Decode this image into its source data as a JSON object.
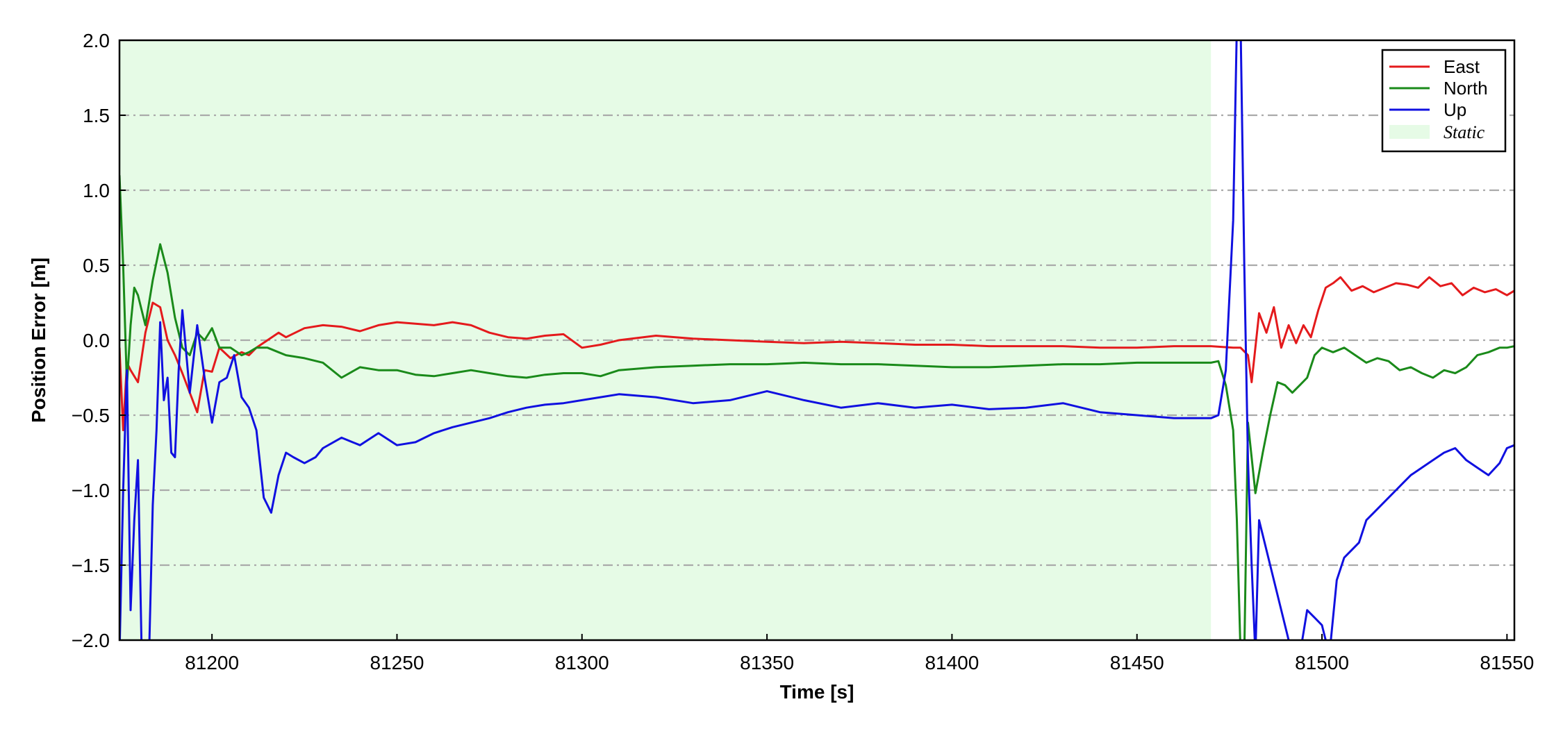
{
  "chart_data": {
    "type": "line",
    "xlabel": "Time [s]",
    "ylabel": "Position Error [m]",
    "xlim": [
      81175,
      81552
    ],
    "ylim": [
      -2.0,
      2.0
    ],
    "xticks": [
      81200,
      81250,
      81300,
      81350,
      81400,
      81450,
      81500,
      81550
    ],
    "yticks": [
      -2.0,
      -1.5,
      -1.0,
      -0.5,
      0.0,
      0.5,
      1.0,
      1.5,
      2.0
    ],
    "ytick_labels": [
      "−2.0",
      "−1.5",
      "−1.0",
      "−0.5",
      "0.0",
      "0.5",
      "1.0",
      "1.5",
      "2.0"
    ],
    "grid": "horizontal dash-dot",
    "legend_position": "top-right",
    "shaded_region": {
      "label": "Static",
      "x_start": 81175,
      "x_end": 81470,
      "color": "#e6fbe6"
    },
    "series": [
      {
        "name": "East",
        "color": "#e41a1c",
        "x": [
          81175,
          81176,
          81177,
          81178,
          81180,
          81182,
          81184,
          81186,
          81188,
          81190,
          81192,
          81194,
          81196,
          81198,
          81200,
          81202,
          81205,
          81208,
          81210,
          81212,
          81215,
          81218,
          81220,
          81225,
          81230,
          81235,
          81240,
          81245,
          81250,
          81255,
          81260,
          81265,
          81270,
          81275,
          81280,
          81285,
          81290,
          81295,
          81300,
          81305,
          81310,
          81320,
          81330,
          81340,
          81350,
          81360,
          81370,
          81380,
          81390,
          81400,
          81410,
          81420,
          81430,
          81440,
          81450,
          81460,
          81470,
          81476,
          81478,
          81480,
          81481,
          81483,
          81485,
          81487,
          81489,
          81491,
          81493,
          81495,
          81497,
          81499,
          81501,
          81503,
          81505,
          81508,
          81511,
          81514,
          81517,
          81520,
          81523,
          81526,
          81529,
          81532,
          81535,
          81538,
          81541,
          81544,
          81547,
          81550,
          81552
        ],
        "y": [
          -0.05,
          -0.6,
          -0.15,
          -0.2,
          -0.28,
          0.05,
          0.25,
          0.22,
          0.0,
          -0.1,
          -0.22,
          -0.35,
          -0.48,
          -0.2,
          -0.21,
          -0.05,
          -0.12,
          -0.08,
          -0.1,
          -0.05,
          0.0,
          0.05,
          0.02,
          0.08,
          0.1,
          0.09,
          0.06,
          0.1,
          0.12,
          0.11,
          0.1,
          0.12,
          0.1,
          0.05,
          0.02,
          0.01,
          0.03,
          0.04,
          -0.05,
          -0.03,
          0.0,
          0.03,
          0.01,
          0.0,
          -0.01,
          -0.02,
          -0.01,
          -0.02,
          -0.03,
          -0.03,
          -0.04,
          -0.04,
          -0.04,
          -0.05,
          -0.05,
          -0.04,
          -0.04,
          -0.05,
          -0.05,
          -0.1,
          -0.28,
          0.18,
          0.05,
          0.22,
          -0.05,
          0.1,
          -0.02,
          0.1,
          0.02,
          0.2,
          0.35,
          0.38,
          0.42,
          0.33,
          0.36,
          0.32,
          0.35,
          0.38,
          0.37,
          0.35,
          0.42,
          0.36,
          0.38,
          0.3,
          0.35,
          0.32,
          0.34,
          0.3,
          0.33
        ]
      },
      {
        "name": "North",
        "color": "#1a8a1a",
        "x": [
          81175,
          81176,
          81177,
          81178,
          81179,
          81180,
          81182,
          81184,
          81186,
          81188,
          81190,
          81192,
          81194,
          81196,
          81198,
          81200,
          81202,
          81205,
          81208,
          81210,
          81212,
          81215,
          81218,
          81220,
          81225,
          81230,
          81235,
          81240,
          81245,
          81250,
          81255,
          81260,
          81265,
          81270,
          81275,
          81280,
          81285,
          81290,
          81295,
          81300,
          81305,
          81310,
          81320,
          81330,
          81340,
          81350,
          81360,
          81370,
          81380,
          81390,
          81400,
          81410,
          81420,
          81430,
          81440,
          81450,
          81460,
          81470,
          81472,
          81474,
          81476,
          81477,
          81478,
          81479,
          81480,
          81482,
          81484,
          81486,
          81488,
          81490,
          81492,
          81494,
          81496,
          81498,
          81500,
          81503,
          81506,
          81509,
          81512,
          81515,
          81518,
          81521,
          81524,
          81527,
          81530,
          81533,
          81536,
          81539,
          81542,
          81545,
          81548,
          81550,
          81552
        ],
        "y": [
          1.1,
          0.5,
          -0.3,
          0.1,
          0.35,
          0.3,
          0.1,
          0.4,
          0.64,
          0.45,
          0.15,
          -0.05,
          -0.1,
          0.05,
          0.0,
          0.08,
          -0.05,
          -0.05,
          -0.1,
          -0.08,
          -0.05,
          -0.05,
          -0.08,
          -0.1,
          -0.12,
          -0.15,
          -0.25,
          -0.18,
          -0.2,
          -0.2,
          -0.23,
          -0.24,
          -0.22,
          -0.2,
          -0.22,
          -0.24,
          -0.25,
          -0.23,
          -0.22,
          -0.22,
          -0.24,
          -0.2,
          -0.18,
          -0.17,
          -0.16,
          -0.16,
          -0.15,
          -0.16,
          -0.16,
          -0.17,
          -0.18,
          -0.18,
          -0.17,
          -0.16,
          -0.16,
          -0.15,
          -0.15,
          -0.15,
          -0.14,
          -0.3,
          -0.6,
          -1.2,
          -2.1,
          -2.1,
          -0.55,
          -1.02,
          -0.75,
          -0.5,
          -0.28,
          -0.3,
          -0.35,
          -0.3,
          -0.25,
          -0.1,
          -0.05,
          -0.08,
          -0.05,
          -0.1,
          -0.15,
          -0.12,
          -0.14,
          -0.2,
          -0.18,
          -0.22,
          -0.25,
          -0.2,
          -0.22,
          -0.18,
          -0.1,
          -0.08,
          -0.05,
          -0.05,
          -0.04
        ]
      },
      {
        "name": "Up",
        "color": "#1010e0",
        "x": [
          81175,
          81176,
          81177,
          81178,
          81179,
          81180,
          81181,
          81182,
          81183,
          81184,
          81185,
          81186,
          81187,
          81188,
          81189,
          81190,
          81191,
          81192,
          81194,
          81196,
          81198,
          81200,
          81202,
          81204,
          81206,
          81208,
          81210,
          81212,
          81214,
          81216,
          81218,
          81220,
          81222,
          81225,
          81228,
          81230,
          81235,
          81240,
          81245,
          81250,
          81255,
          81260,
          81265,
          81270,
          81275,
          81280,
          81285,
          81290,
          81295,
          81300,
          81305,
          81310,
          81320,
          81330,
          81340,
          81350,
          81360,
          81370,
          81380,
          81390,
          81400,
          81410,
          81420,
          81430,
          81440,
          81450,
          81460,
          81470,
          81472,
          81474,
          81476,
          81477,
          81478,
          81479,
          81480,
          81481,
          81482,
          81483,
          81492,
          81494,
          81496,
          81498,
          81500,
          81502,
          81504,
          81506,
          81508,
          81510,
          81512,
          81514,
          81516,
          81518,
          81520,
          81522,
          81524,
          81527,
          81530,
          81533,
          81536,
          81539,
          81542,
          81545,
          81548,
          81550,
          81552
        ],
        "y": [
          -2.1,
          -1.0,
          -0.2,
          -1.8,
          -1.2,
          -0.8,
          -2.1,
          -2.1,
          -2.1,
          -1.1,
          -0.6,
          0.12,
          -0.4,
          -0.25,
          -0.75,
          -0.78,
          -0.2,
          0.2,
          -0.35,
          0.1,
          -0.25,
          -0.55,
          -0.28,
          -0.25,
          -0.1,
          -0.38,
          -0.45,
          -0.6,
          -1.05,
          -1.15,
          -0.9,
          -0.75,
          -0.78,
          -0.82,
          -0.78,
          -0.72,
          -0.65,
          -0.7,
          -0.62,
          -0.7,
          -0.68,
          -0.62,
          -0.58,
          -0.55,
          -0.52,
          -0.48,
          -0.45,
          -0.43,
          -0.42,
          -0.4,
          -0.38,
          -0.36,
          -0.38,
          -0.42,
          -0.4,
          -0.34,
          -0.4,
          -0.45,
          -0.42,
          -0.45,
          -0.43,
          -0.46,
          -0.45,
          -0.42,
          -0.48,
          -0.5,
          -0.52,
          -0.52,
          -0.5,
          -0.2,
          0.8,
          2.1,
          2.1,
          0.5,
          -0.8,
          -1.5,
          -2.1,
          -1.2,
          -2.1,
          -2.1,
          -1.8,
          -1.85,
          -1.9,
          -2.1,
          -1.6,
          -1.45,
          -1.4,
          -1.35,
          -1.2,
          -1.15,
          -1.1,
          -1.05,
          -1.0,
          -0.95,
          -0.9,
          -0.85,
          -0.8,
          -0.75,
          -0.72,
          -0.8,
          -0.85,
          -0.9,
          -0.82,
          -0.72,
          -0.7
        ]
      }
    ]
  }
}
